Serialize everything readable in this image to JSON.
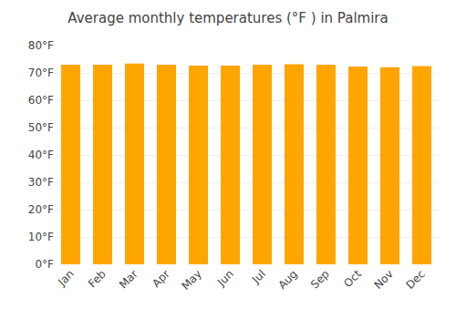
{
  "chart_data": {
    "type": "bar",
    "title": "Average monthly temperatures (°F ) in Palmira",
    "categories": [
      "Jan",
      "Feb",
      "Mar",
      "Apr",
      "May",
      "Jun",
      "Jul",
      "Aug",
      "Sep",
      "Oct",
      "Nov",
      "Dec"
    ],
    "values": [
      73.0,
      73.0,
      73.4,
      73.0,
      72.7,
      72.7,
      73.0,
      73.2,
      73.0,
      72.3,
      72.1,
      72.5
    ],
    "color": "#FFA500",
    "ylim": [
      0,
      80
    ],
    "yticks": [
      {
        "value": 0,
        "label": "0°F"
      },
      {
        "value": 10,
        "label": "10°F"
      },
      {
        "value": 20,
        "label": "20°F"
      },
      {
        "value": 30,
        "label": "30°F"
      },
      {
        "value": 40,
        "label": "40°F"
      },
      {
        "value": 50,
        "label": "50°F"
      },
      {
        "value": 60,
        "label": "60°F"
      },
      {
        "value": 70,
        "label": "70°F"
      },
      {
        "value": 80,
        "label": "80°F"
      }
    ],
    "grid": true
  }
}
